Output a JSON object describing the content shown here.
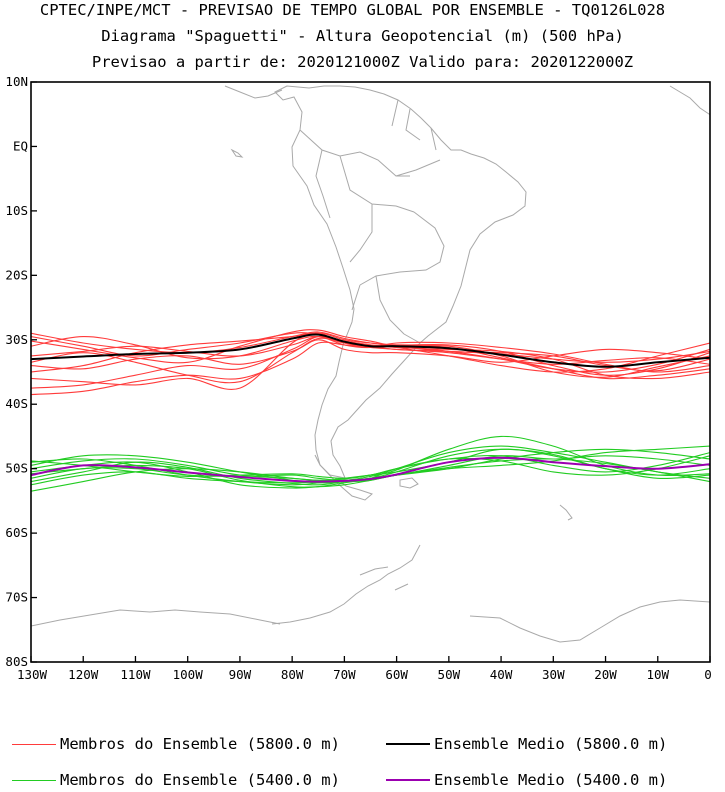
{
  "title": {
    "line1": "CPTEC/INPE/MCT - PREVISAO DE TEMPO GLOBAL POR ENSEMBLE - TQ0126L028",
    "line2": "Diagrama \"Spaguetti\" - Altura Geopotencial (m) (500 hPa)",
    "line3": "Previsao a partir de: 2020121000Z  Valido para: 2020122000Z"
  },
  "chart_data": {
    "type": "line",
    "xlim": [
      -130,
      0
    ],
    "ylim": [
      -80,
      10
    ],
    "x_ticks": [
      -130,
      -120,
      -110,
      -100,
      -90,
      -80,
      -70,
      -60,
      -50,
      -40,
      -30,
      -20,
      -10,
      0
    ],
    "x_tick_labels": [
      "130W",
      "120W",
      "110W",
      "100W",
      "90W",
      "80W",
      "70W",
      "60W",
      "50W",
      "40W",
      "30W",
      "20W",
      "10W",
      "0"
    ],
    "y_ticks": [
      10,
      0,
      -10,
      -20,
      -30,
      -40,
      -50,
      -60,
      -70,
      -80
    ],
    "y_tick_labels": [
      "10N",
      "EQ",
      "10S",
      "20S",
      "30S",
      "40S",
      "50S",
      "60S",
      "70S",
      "80S"
    ],
    "colors": {
      "members_5800": "#ff3b3b",
      "mean_5800": "#000000",
      "members_5400": "#22cc22",
      "mean_5400": "#9b00b0",
      "coast": "#a9a9a9"
    },
    "x": [
      -130,
      -120,
      -110,
      -100,
      -90,
      -80,
      -75,
      -70,
      -65,
      -60,
      -50,
      -40,
      -30,
      -20,
      -10,
      0
    ],
    "series": [
      {
        "name": "Ensemble Medio (5800.0 m)",
        "values": [
          -33.0,
          -32.6,
          -32.2,
          -32.0,
          -31.5,
          -29.8,
          -29.2,
          -30.3,
          -31.0,
          -31.0,
          -31.3,
          -32.3,
          -33.5,
          -34.2,
          -33.5,
          -32.8
        ]
      },
      {
        "name": "Ensemble Medio (5400.0 m)",
        "values": [
          -51.0,
          -49.5,
          -49.8,
          -50.6,
          -51.3,
          -51.9,
          -52.0,
          -51.9,
          -51.6,
          -50.9,
          -49.0,
          -48.3,
          -49.0,
          -49.6,
          -50.0,
          -49.3
        ]
      },
      {
        "name": "Membros do Ensemble (5800.0 m)",
        "values": [
          -29.0,
          -30.5,
          -31.5,
          -32.0,
          -31.2,
          -29.5,
          -28.8,
          -29.8,
          -30.5,
          -31.0,
          -31.8,
          -33.0,
          -34.5,
          -35.0,
          -33.8,
          -31.5
        ]
      },
      {
        "name": "Membros do Ensemble (5800.0 m)",
        "values": [
          -31.0,
          -29.5,
          -30.8,
          -32.8,
          -32.5,
          -30.2,
          -29.5,
          -30.8,
          -31.2,
          -30.5,
          -30.5,
          -31.2,
          -32.2,
          -33.8,
          -35.0,
          -34.0
        ]
      },
      {
        "name": "Membros do Ensemble (5800.0 m)",
        "values": [
          -34.0,
          -34.5,
          -33.0,
          -32.5,
          -33.8,
          -31.8,
          -30.0,
          -31.5,
          -32.0,
          -32.0,
          -32.5,
          -33.5,
          -32.5,
          -31.5,
          -32.0,
          -33.0
        ]
      },
      {
        "name": "Membros do Ensemble (5800.0 m)",
        "values": [
          -37.5,
          -37.0,
          -35.5,
          -34.0,
          -34.5,
          -31.5,
          -29.5,
          -30.2,
          -30.8,
          -31.2,
          -31.5,
          -31.8,
          -33.0,
          -35.5,
          -36.0,
          -35.0
        ]
      },
      {
        "name": "Membros do Ensemble (5800.0 m)",
        "values": [
          -36.0,
          -36.5,
          -37.0,
          -36.0,
          -37.5,
          -30.5,
          -29.0,
          -30.0,
          -30.5,
          -30.8,
          -30.8,
          -31.8,
          -34.0,
          -35.5,
          -34.5,
          -32.0
        ]
      },
      {
        "name": "Membros do Ensemble (5800.0 m)",
        "values": [
          -38.5,
          -38.0,
          -36.5,
          -35.5,
          -36.0,
          -33.0,
          -30.5,
          -30.8,
          -31.2,
          -31.5,
          -32.0,
          -33.0,
          -33.8,
          -33.2,
          -32.8,
          -33.8
        ]
      },
      {
        "name": "Membros do Ensemble (5800.0 m)",
        "values": [
          -32.5,
          -31.8,
          -31.0,
          -31.8,
          -32.5,
          -30.8,
          -29.5,
          -30.5,
          -31.0,
          -30.8,
          -31.2,
          -32.8,
          -34.5,
          -36.0,
          -35.5,
          -34.5
        ]
      },
      {
        "name": "Membros do Ensemble (5800.0 m)",
        "values": [
          -30.2,
          -31.5,
          -32.8,
          -33.5,
          -31.0,
          -28.8,
          -28.5,
          -29.5,
          -30.2,
          -31.0,
          -31.8,
          -32.0,
          -32.5,
          -34.0,
          -34.8,
          -33.0
        ]
      },
      {
        "name": "Membros do Ensemble (5800.0 m)",
        "values": [
          -35.0,
          -34.0,
          -32.0,
          -30.8,
          -30.2,
          -29.5,
          -29.0,
          -30.5,
          -31.2,
          -31.0,
          -31.0,
          -32.5,
          -35.0,
          -35.8,
          -34.2,
          -32.5
        ]
      },
      {
        "name": "Membros do Ensemble (5800.0 m)",
        "values": [
          -33.5,
          -32.0,
          -33.5,
          -35.5,
          -36.5,
          -32.0,
          -29.8,
          -30.5,
          -31.0,
          -31.5,
          -31.8,
          -32.2,
          -33.0,
          -33.5,
          -33.0,
          -31.8
        ]
      },
      {
        "name": "Membros do Ensemble (5800.0 m)",
        "values": [
          -29.5,
          -31.0,
          -32.5,
          -31.5,
          -30.5,
          -29.0,
          -29.2,
          -30.2,
          -30.8,
          -31.2,
          -32.5,
          -34.0,
          -35.0,
          -34.5,
          -32.5,
          -30.5
        ]
      },
      {
        "name": "Membros do Ensemble (5400.0 m)",
        "values": [
          -50.0,
          -48.8,
          -48.5,
          -49.5,
          -51.0,
          -51.5,
          -51.8,
          -51.6,
          -51.0,
          -50.0,
          -47.5,
          -46.5,
          -47.5,
          -49.0,
          -50.5,
          -51.5
        ]
      },
      {
        "name": "Membros do Ensemble (5400.0 m)",
        "values": [
          -52.0,
          -50.5,
          -49.0,
          -49.8,
          -51.5,
          -52.3,
          -52.5,
          -52.0,
          -51.5,
          -51.0,
          -49.5,
          -48.0,
          -48.5,
          -48.0,
          -48.5,
          -49.5
        ]
      },
      {
        "name": "Membros do Ensemble (5400.0 m)",
        "values": [
          -49.0,
          -48.5,
          -49.5,
          -51.0,
          -52.0,
          -52.5,
          -52.2,
          -51.8,
          -51.5,
          -50.5,
          -48.0,
          -47.0,
          -47.8,
          -50.0,
          -51.0,
          -50.0
        ]
      },
      {
        "name": "Membros do Ensemble (5400.0 m)",
        "values": [
          -53.5,
          -52.0,
          -50.5,
          -50.0,
          -50.5,
          -51.5,
          -51.8,
          -52.0,
          -51.8,
          -51.0,
          -50.0,
          -49.5,
          -48.8,
          -47.5,
          -47.0,
          -46.5
        ]
      },
      {
        "name": "Membros do Ensemble (5400.0 m)",
        "values": [
          -51.5,
          -50.0,
          -50.0,
          -51.0,
          -51.2,
          -51.0,
          -51.5,
          -51.8,
          -51.2,
          -50.2,
          -47.0,
          -45.0,
          -46.5,
          -49.5,
          -51.0,
          -50.8
        ]
      },
      {
        "name": "Membros do Ensemble (5400.0 m)",
        "values": [
          -50.5,
          -49.5,
          -49.0,
          -50.5,
          -52.5,
          -53.0,
          -52.8,
          -52.2,
          -51.5,
          -50.0,
          -48.5,
          -48.8,
          -50.5,
          -51.0,
          -50.0,
          -48.0
        ]
      },
      {
        "name": "Membros do Ensemble (5400.0 m)",
        "values": [
          -49.5,
          -48.0,
          -48.0,
          -49.0,
          -50.5,
          -51.8,
          -52.2,
          -52.0,
          -51.5,
          -51.0,
          -50.0,
          -48.5,
          -47.5,
          -47.0,
          -47.5,
          -48.5
        ]
      },
      {
        "name": "Membros do Ensemble (5400.0 m)",
        "values": [
          -52.5,
          -51.0,
          -50.5,
          -51.5,
          -52.0,
          -52.2,
          -52.0,
          -51.5,
          -51.0,
          -50.5,
          -49.0,
          -47.0,
          -48.0,
          -50.0,
          -51.5,
          -51.0
        ]
      },
      {
        "name": "Membros do Ensemble (5400.0 m)",
        "values": [
          -48.8,
          -49.5,
          -50.5,
          -51.2,
          -51.0,
          -50.8,
          -51.2,
          -51.5,
          -51.0,
          -50.0,
          -48.5,
          -48.0,
          -49.5,
          -50.5,
          -49.5,
          -47.5
        ]
      },
      {
        "name": "Membros do Ensemble (5400.0 m)",
        "values": [
          -50.8,
          -50.0,
          -49.5,
          -50.0,
          -51.8,
          -52.8,
          -52.8,
          -52.5,
          -51.8,
          -51.0,
          -49.8,
          -48.8,
          -48.5,
          -49.2,
          -50.5,
          -52.0
        ]
      }
    ]
  },
  "legend": {
    "members_5800": "Membros do Ensemble (5800.0 m)",
    "mean_5800": "Ensemble Medio (5800.0 m)",
    "members_5400": "Membros do Ensemble (5400.0 m)",
    "mean_5400": "Ensemble Medio (5400.0 m)"
  }
}
